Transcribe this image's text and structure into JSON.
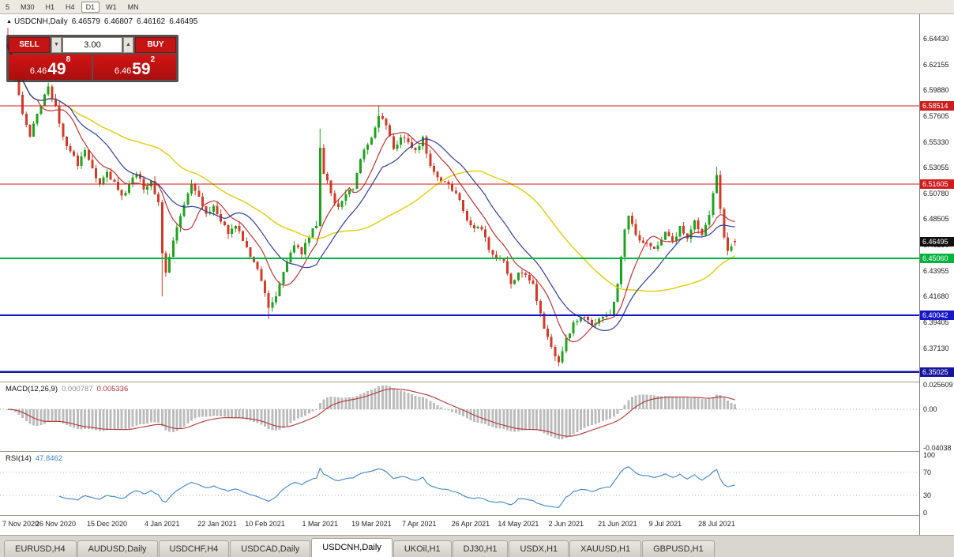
{
  "toolbar": {
    "timeframes": [
      "5",
      "M30",
      "H1",
      "H4",
      "D1",
      "W1",
      "MN"
    ],
    "active": "D1"
  },
  "chart": {
    "title": "USDCNH,Daily",
    "open": "6.46579",
    "high": "6.46807",
    "low": "6.46162",
    "close": "6.46495"
  },
  "trade_panel": {
    "sell_label": "SELL",
    "buy_label": "BUY",
    "volume": "3.00",
    "sell_price": {
      "prefix": "6.46",
      "big": "49",
      "sup": "8"
    },
    "buy_price": {
      "prefix": "6.46",
      "big": "59",
      "sup": "2"
    }
  },
  "indicators": {
    "macd": {
      "label": "MACD(12,26,9)",
      "value1": "0.000787",
      "value2": "0.005336"
    },
    "rsi": {
      "label": "RSI(14)",
      "value": "47.8462"
    }
  },
  "tabs": [
    {
      "label": "EURUSD,H4",
      "active": false
    },
    {
      "label": "AUDUSD,Daily",
      "active": false
    },
    {
      "label": "USDCHF,H4",
      "active": false
    },
    {
      "label": "USDCAD,Daily",
      "active": false
    },
    {
      "label": "USDCNH,Daily",
      "active": true
    },
    {
      "label": "UKOil,H1",
      "active": false
    },
    {
      "label": "DJ30,H1",
      "active": false
    },
    {
      "label": "USDX,H1",
      "active": false
    },
    {
      "label": "XAUUSD,H1",
      "active": false
    },
    {
      "label": "GBPUSD,H1",
      "active": false
    }
  ],
  "chart_data": {
    "type": "candlestick",
    "title": "USDCNH,Daily",
    "ohlc": {
      "open": 6.46579,
      "high": 6.46807,
      "low": 6.46162,
      "close": 6.46495
    },
    "n": 199,
    "y_ticks": [
      "6.64430",
      "6.62155",
      "6.59880",
      "6.57605",
      "6.55330",
      "6.53055",
      "6.50780",
      "6.48505",
      "6.46230",
      "6.43955",
      "6.41680",
      "6.39405",
      "6.37130",
      "6.34855"
    ],
    "x_ticks": [
      {
        "label": "7 Nov 2020",
        "i": 0
      },
      {
        "label": "26 Nov 2020",
        "i": 13
      },
      {
        "label": "15 Dec 2020",
        "i": 27
      },
      {
        "label": "4 Jan 2021",
        "i": 42
      },
      {
        "label": "22 Jan 2021",
        "i": 57
      },
      {
        "label": "10 Feb 2021",
        "i": 70
      },
      {
        "label": "1 Mar 2021",
        "i": 85
      },
      {
        "label": "19 Mar 2021",
        "i": 99
      },
      {
        "label": "7 Apr 2021",
        "i": 112
      },
      {
        "label": "26 Apr 2021",
        "i": 126
      },
      {
        "label": "14 May 2021",
        "i": 139
      },
      {
        "label": "2 Jun 2021",
        "i": 152
      },
      {
        "label": "21 Jun 2021",
        "i": 166
      },
      {
        "label": "9 Jul 2021",
        "i": 179
      },
      {
        "label": "28 Jul 2021",
        "i": 193
      }
    ],
    "levels": [
      {
        "value": "6.58514",
        "color": "#cf1d1d",
        "width": 1.2
      },
      {
        "value": "6.51605",
        "color": "#cf1d1d",
        "width": 1.2
      },
      {
        "value": "6.45060",
        "color": "#00b33c",
        "width": 2
      },
      {
        "value": "6.40042",
        "color": "#1617c9",
        "width": 2
      },
      {
        "value": "6.35025",
        "color": "#15159e",
        "width": 2.5
      }
    ],
    "current_price": {
      "value": "6.46495",
      "color": "#111111"
    },
    "candle_colors": {
      "up": "#1ea31e",
      "down": "#d23b28"
    },
    "moving_averages": [
      {
        "name": "slow-ma",
        "period": 45,
        "color": "#e3cf16"
      },
      {
        "name": "fast-ma",
        "period": 9,
        "color": "#c03434"
      },
      {
        "name": "medium-ma",
        "period": 18,
        "color": "#2c3d9a"
      }
    ],
    "anchors": [
      [
        0,
        6.636
      ],
      [
        2,
        6.61
      ],
      [
        4,
        6.578
      ],
      [
        6,
        6.558
      ],
      [
        9,
        6.585
      ],
      [
        11,
        6.602
      ],
      [
        13,
        6.585
      ],
      [
        15,
        6.558
      ],
      [
        17,
        6.545
      ],
      [
        19,
        6.532
      ],
      [
        21,
        6.546
      ],
      [
        23,
        6.53
      ],
      [
        25,
        6.516
      ],
      [
        27,
        6.527
      ],
      [
        29,
        6.518
      ],
      [
        31,
        6.506
      ],
      [
        33,
        6.516
      ],
      [
        35,
        6.525
      ],
      [
        37,
        6.511
      ],
      [
        39,
        6.519
      ],
      [
        41,
        6.5
      ],
      [
        42,
        6.455
      ],
      [
        43,
        6.438
      ],
      [
        44,
        6.452
      ],
      [
        46,
        6.478
      ],
      [
        48,
        6.498
      ],
      [
        50,
        6.516
      ],
      [
        52,
        6.505
      ],
      [
        54,
        6.49
      ],
      [
        56,
        6.497
      ],
      [
        58,
        6.483
      ],
      [
        60,
        6.472
      ],
      [
        62,
        6.479
      ],
      [
        64,
        6.466
      ],
      [
        66,
        6.452
      ],
      [
        68,
        6.441
      ],
      [
        70,
        6.42
      ],
      [
        71,
        6.407
      ],
      [
        72,
        6.412
      ],
      [
        74,
        6.428
      ],
      [
        76,
        6.447
      ],
      [
        78,
        6.462
      ],
      [
        80,
        6.454
      ],
      [
        82,
        6.469
      ],
      [
        84,
        6.479
      ],
      [
        85,
        6.548
      ],
      [
        86,
        6.525
      ],
      [
        88,
        6.508
      ],
      [
        90,
        6.496
      ],
      [
        92,
        6.507
      ],
      [
        94,
        6.512
      ],
      [
        96,
        6.538
      ],
      [
        98,
        6.551
      ],
      [
        100,
        6.566
      ],
      [
        101,
        6.576
      ],
      [
        103,
        6.568
      ],
      [
        105,
        6.547
      ],
      [
        107,
        6.557
      ],
      [
        109,
        6.553
      ],
      [
        111,
        6.546
      ],
      [
        113,
        6.558
      ],
      [
        115,
        6.532
      ],
      [
        117,
        6.522
      ],
      [
        119,
        6.518
      ],
      [
        121,
        6.51
      ],
      [
        123,
        6.502
      ],
      [
        125,
        6.484
      ],
      [
        127,
        6.477
      ],
      [
        129,
        6.476
      ],
      [
        131,
        6.458
      ],
      [
        133,
        6.45
      ],
      [
        135,
        6.448
      ],
      [
        137,
        6.428
      ],
      [
        139,
        6.438
      ],
      [
        141,
        6.436
      ],
      [
        143,
        6.428
      ],
      [
        145,
        6.402
      ],
      [
        147,
        6.381
      ],
      [
        149,
        6.364
      ],
      [
        150,
        6.359
      ],
      [
        152,
        6.38
      ],
      [
        154,
        6.394
      ],
      [
        156,
        6.399
      ],
      [
        158,
        6.396
      ],
      [
        160,
        6.393
      ],
      [
        162,
        6.399
      ],
      [
        164,
        6.401
      ],
      [
        166,
        6.428
      ],
      [
        167,
        6.452
      ],
      [
        168,
        6.476
      ],
      [
        169,
        6.488
      ],
      [
        171,
        6.471
      ],
      [
        173,
        6.464
      ],
      [
        175,
        6.461
      ],
      [
        177,
        6.462
      ],
      [
        179,
        6.474
      ],
      [
        181,
        6.466
      ],
      [
        183,
        6.479
      ],
      [
        185,
        6.468
      ],
      [
        187,
        6.484
      ],
      [
        189,
        6.471
      ],
      [
        191,
        6.489
      ],
      [
        192,
        6.508
      ],
      [
        193,
        6.524
      ],
      [
        194,
        6.494
      ],
      [
        195,
        6.469
      ],
      [
        196,
        6.457
      ],
      [
        197,
        6.461
      ],
      [
        198,
        6.46495
      ]
    ],
    "specials": [
      {
        "i": 0,
        "high": 6.654
      },
      {
        "i": 42,
        "low": 6.417
      },
      {
        "i": 71,
        "low": 6.397
      },
      {
        "i": 85,
        "high": 6.565
      },
      {
        "i": 101,
        "high": 6.5851
      },
      {
        "i": 150,
        "low": 6.3555
      },
      {
        "i": 193,
        "high": 6.5315
      }
    ],
    "macd": {
      "params": "12,26,9",
      "bar_color": "#bcbcbc",
      "signal_color": "#b23535",
      "axis": [
        {
          "label": "0.025609",
          "v": 0.025609
        },
        {
          "label": "0.00",
          "v": 0
        },
        {
          "label": "-0.04038",
          "v": -0.04038
        }
      ]
    },
    "rsi": {
      "period": 14,
      "color": "#3d85c8",
      "levels": [
        70,
        30
      ],
      "axis": [
        {
          "label": "100",
          "v": 100
        },
        {
          "label": "70",
          "v": 70
        },
        {
          "label": "30",
          "v": 30
        },
        {
          "label": "0",
          "v": 0
        }
      ]
    }
  }
}
